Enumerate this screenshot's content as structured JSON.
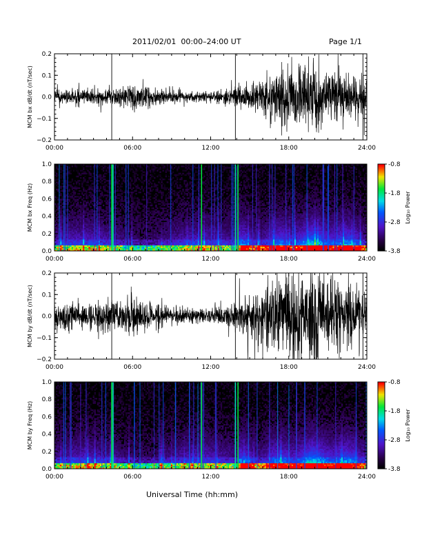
{
  "header": {
    "title": "2011/02/01  00:00–24:00 UT",
    "page": "Page 1/1"
  },
  "footer": {
    "xlabel": "Universal Time (hh:mm)"
  },
  "chart_data": [
    {
      "type": "line",
      "ylabel": "MCM bx dB/dt (nT/sec)",
      "xlabel": "",
      "x_ticks": [
        "00:00",
        "06:00",
        "12:00",
        "18:00",
        "24:00"
      ],
      "xlim": [
        0,
        24
      ],
      "ylim": [
        -0.2,
        0.2
      ],
      "y_ticks": [
        -0.2,
        -0.1,
        0.0,
        0.1,
        0.2
      ],
      "y_tick_labels": [
        "−0.2",
        "−0.1",
        "0.0",
        "0.1",
        "0.2"
      ],
      "spikes_hours": [
        4.4,
        13.9,
        23.7
      ],
      "envelope": {
        "x": [
          0,
          1,
          2,
          3,
          4,
          5,
          6,
          7,
          8,
          9,
          10,
          11,
          12,
          13,
          14,
          15,
          16,
          17,
          18,
          19,
          20,
          21,
          22,
          23,
          24
        ],
        "y": [
          0.03,
          0.03,
          0.035,
          0.03,
          0.035,
          0.04,
          0.05,
          0.045,
          0.03,
          0.03,
          0.025,
          0.02,
          0.02,
          0.03,
          0.045,
          0.06,
          0.08,
          0.1,
          0.13,
          0.14,
          0.15,
          0.12,
          0.1,
          0.09,
          0.07
        ]
      },
      "series": [
        {
          "values_desc": "noise"
        }
      ]
    },
    {
      "type": "heatmap",
      "ylabel": "MCM bx Freq (Hz)",
      "xlabel": "",
      "x_ticks": [
        "00:00",
        "06:00",
        "12:00",
        "18:00",
        "24:00"
      ],
      "xlim": [
        0,
        24
      ],
      "ylim": [
        0,
        1.0
      ],
      "y_ticks": [
        0.0,
        0.2,
        0.4,
        0.6,
        0.8,
        1.0
      ],
      "y_tick_labels": [
        "0.0",
        "0.2",
        "0.4",
        "0.6",
        "0.8",
        "1.0"
      ],
      "colorbar": {
        "label": "Log₁₀ Power",
        "range": [
          -3.8,
          -0.8
        ],
        "tick_labels": [
          "-0.8",
          "-1.8",
          "-2.8",
          "-3.8"
        ],
        "tick_values": [
          -0.8,
          -1.8,
          -2.8,
          -3.8
        ]
      },
      "bright_lines_hours": [
        4.4,
        4.5,
        11.3,
        13.9,
        14.1
      ],
      "seed": 7
    },
    {
      "type": "line",
      "ylabel": "MCM by dB/dt (nT/sec)",
      "xlabel": "",
      "x_ticks": [
        "00:00",
        "06:00",
        "12:00",
        "18:00",
        "24:00"
      ],
      "xlim": [
        0,
        24
      ],
      "ylim": [
        -0.2,
        0.2
      ],
      "y_ticks": [
        -0.2,
        -0.1,
        0.0,
        0.1,
        0.2
      ],
      "y_tick_labels": [
        "−0.2",
        "−0.1",
        "0.0",
        "0.1",
        "0.2"
      ],
      "spikes_hours": [
        4.4,
        13.9,
        23.7
      ],
      "envelope": {
        "x": [
          0,
          1,
          2,
          3,
          4,
          5,
          6,
          7,
          8,
          9,
          10,
          11,
          12,
          13,
          14,
          15,
          16,
          17,
          18,
          19,
          20,
          21,
          22,
          23,
          24
        ],
        "y": [
          0.05,
          0.06,
          0.05,
          0.06,
          0.07,
          0.06,
          0.08,
          0.06,
          0.05,
          0.04,
          0.035,
          0.03,
          0.03,
          0.05,
          0.07,
          0.1,
          0.13,
          0.16,
          0.2,
          0.22,
          0.2,
          0.18,
          0.15,
          0.12,
          0.1
        ]
      },
      "series": [
        {
          "values_desc": "noise"
        }
      ]
    },
    {
      "type": "heatmap",
      "ylabel": "MCM by Freq (Hz)",
      "xlabel": "",
      "x_ticks": [
        "00:00",
        "06:00",
        "12:00",
        "18:00",
        "24:00"
      ],
      "xlim": [
        0,
        24
      ],
      "ylim": [
        0,
        1.0
      ],
      "y_ticks": [
        0.0,
        0.2,
        0.4,
        0.6,
        0.8,
        1.0
      ],
      "y_tick_labels": [
        "0.0",
        "0.2",
        "0.4",
        "0.6",
        "0.8",
        "1.0"
      ],
      "colorbar": {
        "label": "Log₁₀ Power",
        "range": [
          -3.8,
          -0.8
        ],
        "tick_labels": [
          "-0.8",
          "-1.8",
          "-2.8",
          "-3.8"
        ],
        "tick_values": [
          -0.8,
          -1.8,
          -2.8,
          -3.8
        ]
      },
      "bright_lines_hours": [
        4.4,
        4.5,
        11.3,
        13.9,
        14.1
      ],
      "seed": 13
    }
  ]
}
